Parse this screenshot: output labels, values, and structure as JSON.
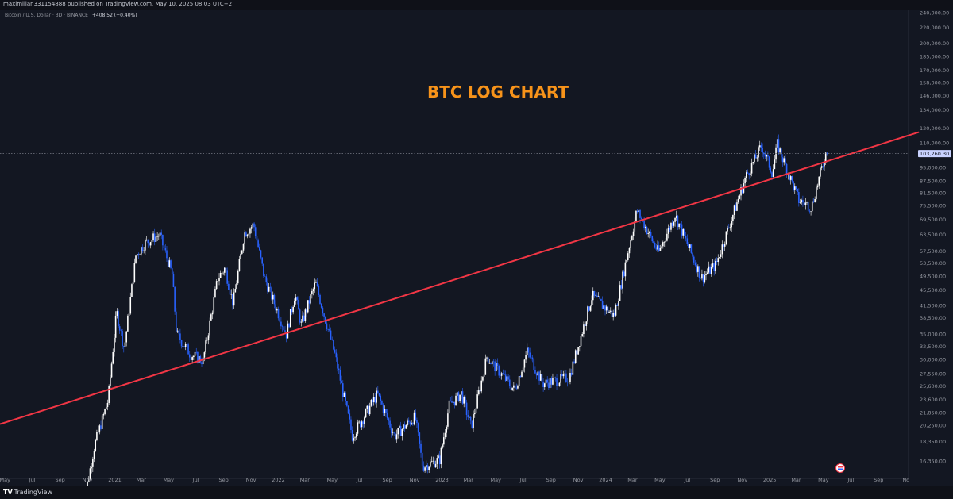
{
  "header": {
    "publisher_line": "maximilian331154888 published on TradingView.com, May 10, 2025 08:03 UTC+2",
    "symbol_line": "Bitcoin / U.S. Dollar · 3D · BINANCE",
    "change": "+408.52 (+0.40%)"
  },
  "footer": {
    "brand_mark": "TV",
    "brand_name": "TradingView"
  },
  "colors": {
    "background": "#131722",
    "bull_candle": "#ffffff",
    "bear_candle": "#2962ff",
    "trendline": "#f23645",
    "title": "#f7931a",
    "axis_text": "#9598a1",
    "last_price_tag": "#c9d2ff"
  },
  "icons": {
    "economic_event": "us-flag-icon"
  },
  "chart_data": {
    "type": "candlestick",
    "title": "BTC LOG CHART",
    "scale": "log",
    "ylim": [
      14800,
      245000
    ],
    "y_ticks": [
      "16,350.00",
      "18,350.00",
      "20,250.00",
      "21,850.00",
      "23,600.00",
      "25,600.00",
      "27,550.00",
      "30,000.00",
      "32,500.00",
      "35,000.00",
      "38,500.00",
      "41,500.00",
      "45,500.00",
      "49,500.00",
      "53,500.00",
      "57,500.00",
      "63,500.00",
      "69,500.00",
      "75,500.00",
      "81,500.00",
      "87,500.00",
      "95,000.00",
      "103,260.30",
      "110,000.00",
      "120,000.00",
      "134,000.00",
      "146,000.00",
      "158,000.00",
      "170,000.00",
      "185,000.00",
      "200,000.00",
      "220,000.00",
      "240,000.00"
    ],
    "x_ticks": [
      "May",
      "Jul",
      "Sep",
      "Nov",
      "2021",
      "Mar",
      "May",
      "Jul",
      "Sep",
      "Nov",
      "2022",
      "Mar",
      "May",
      "Jul",
      "Sep",
      "Nov",
      "2023",
      "Mar",
      "May",
      "Jul",
      "Sep",
      "Nov",
      "2024",
      "Mar",
      "May",
      "Jul",
      "Sep",
      "Nov",
      "2025",
      "Mar",
      "May",
      "Jul",
      "Sep",
      "No"
    ],
    "x_range": [
      "2020-04-20",
      "2025-11-05"
    ],
    "last_price": 103260.3,
    "last_price_label": "103,260.30",
    "trendline": {
      "from": {
        "date": "2020-04-20",
        "price": 20400
      },
      "to": {
        "date": "2025-11-05",
        "price": 115000
      }
    },
    "price_path": [
      [
        "2020-10-20",
        11500
      ],
      [
        "2020-11-20",
        18000
      ],
      [
        "2020-12-20",
        23500
      ],
      [
        "2021-01-08",
        40000
      ],
      [
        "2021-01-25",
        32000
      ],
      [
        "2021-02-20",
        56000
      ],
      [
        "2021-03-13",
        60500
      ],
      [
        "2021-04-14",
        63500
      ],
      [
        "2021-05-12",
        50000
      ],
      [
        "2021-05-22",
        35000
      ],
      [
        "2021-06-22",
        31000
      ],
      [
        "2021-07-20",
        29800
      ],
      [
        "2021-08-22",
        49000
      ],
      [
        "2021-09-07",
        52000
      ],
      [
        "2021-09-25",
        42000
      ],
      [
        "2021-10-20",
        64000
      ],
      [
        "2021-11-10",
        67500
      ],
      [
        "2021-12-04",
        49000
      ],
      [
        "2022-01-22",
        35000
      ],
      [
        "2022-02-10",
        44500
      ],
      [
        "2022-02-24",
        37000
      ],
      [
        "2022-03-28",
        47500
      ],
      [
        "2022-05-10",
        31000
      ],
      [
        "2022-06-18",
        19000
      ],
      [
        "2022-08-13",
        24400
      ],
      [
        "2022-09-20",
        19000
      ],
      [
        "2022-11-05",
        21300
      ],
      [
        "2022-11-22",
        15800
      ],
      [
        "2022-12-30",
        16500
      ],
      [
        "2023-01-20",
        22800
      ],
      [
        "2023-02-16",
        24500
      ],
      [
        "2023-03-10",
        20000
      ],
      [
        "2023-04-14",
        30500
      ],
      [
        "2023-06-15",
        25000
      ],
      [
        "2023-07-13",
        31500
      ],
      [
        "2023-08-17",
        26000
      ],
      [
        "2023-10-15",
        27000
      ],
      [
        "2023-12-05",
        44000
      ],
      [
        "2024-01-23",
        39000
      ],
      [
        "2024-03-14",
        73500
      ],
      [
        "2024-05-01",
        57000
      ],
      [
        "2024-06-07",
        71500
      ],
      [
        "2024-08-05",
        49000
      ],
      [
        "2024-09-06",
        53000
      ],
      [
        "2024-11-12",
        90000
      ],
      [
        "2024-12-17",
        108000
      ],
      [
        "2025-01-10",
        92000
      ],
      [
        "2025-01-21",
        109000
      ],
      [
        "2025-03-10",
        78000
      ],
      [
        "2025-04-07",
        75000
      ],
      [
        "2025-05-09",
        103260
      ]
    ]
  }
}
